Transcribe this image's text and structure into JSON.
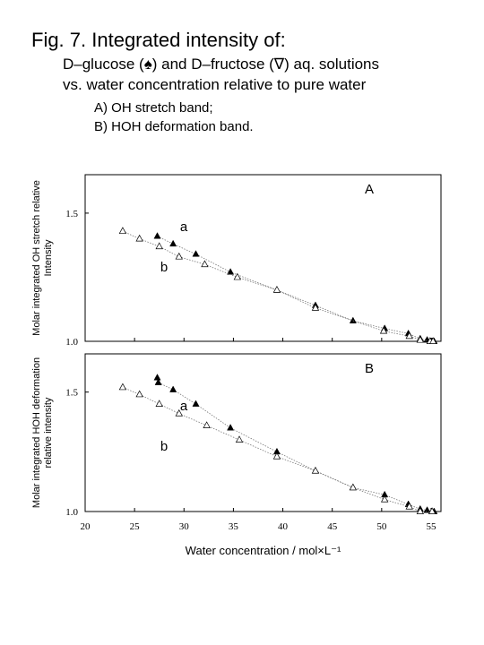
{
  "header": {
    "title": "Fig. 7. Integrated intensity of:",
    "subtitle_lines": [
      "D–glucose (♠) and D–fructose (∇) aq. solutions",
      "vs. water concentration relative to pure water"
    ],
    "items": [
      "A) OH stretch band;",
      "B) HOH deformation band."
    ]
  },
  "chart_data": [
    {
      "type": "scatter",
      "panel_label": "A",
      "y_label_lines": [
        "Molar integrated OH stretch relative",
        "Intensity"
      ],
      "xlim": [
        20,
        56
      ],
      "ylim": [
        1.0,
        1.65
      ],
      "xticks": [
        20,
        25,
        30,
        35,
        40,
        45,
        50,
        55
      ],
      "show_xtick_labels": false,
      "yticks": [
        {
          "value": 1.0,
          "label": "1.0"
        },
        1.5
      ],
      "series": [
        {
          "name": "a",
          "color": "#000000",
          "marker": "filled-triangle",
          "x": [
            27.3,
            28.9,
            31.2,
            34.7,
            39.4,
            43.3,
            47.1,
            50.3,
            52.7,
            53.9,
            54.6,
            55.1,
            55.3
          ],
          "values": [
            1.41,
            1.38,
            1.34,
            1.27,
            1.2,
            1.14,
            1.08,
            1.05,
            1.03,
            1.01,
            1.005,
            1.0,
            1.0
          ]
        },
        {
          "name": "b",
          "color": "#000000",
          "marker": "open-triangle",
          "x": [
            23.8,
            25.5,
            27.5,
            29.5,
            32.1,
            35.4,
            39.4,
            43.3,
            50.2,
            52.8,
            53.9,
            54.9,
            55.2
          ],
          "values": [
            1.43,
            1.4,
            1.37,
            1.33,
            1.3,
            1.25,
            1.2,
            1.13,
            1.04,
            1.02,
            1.005,
            1.0,
            1.0
          ]
        }
      ]
    },
    {
      "type": "scatter",
      "panel_label": "B",
      "y_label_lines": [
        "Molar integrated HOH deformation",
        "relative intensity"
      ],
      "x_label": "Water concentration / mol×L⁻¹",
      "xlim": [
        20,
        56
      ],
      "ylim": [
        1.0,
        1.66
      ],
      "xticks": [
        20,
        25,
        30,
        35,
        40,
        45,
        50,
        55
      ],
      "show_xtick_labels": true,
      "yticks": [
        {
          "value": 1.0,
          "label": "1.0"
        },
        1.5
      ],
      "series": [
        {
          "name": "a",
          "color": "#000000",
          "marker": "filled-triangle",
          "x": [
            27.3,
            27.4,
            28.9,
            31.2,
            34.7,
            39.4,
            43.3,
            47.1,
            50.3,
            52.7,
            53.9,
            54.6,
            55.3
          ],
          "values": [
            1.56,
            1.54,
            1.51,
            1.45,
            1.35,
            1.25,
            1.17,
            1.1,
            1.07,
            1.03,
            1.01,
            1.005,
            1.0
          ]
        },
        {
          "name": "b",
          "color": "#000000",
          "marker": "open-triangle",
          "x": [
            23.8,
            25.5,
            27.5,
            29.5,
            32.3,
            35.6,
            39.4,
            43.3,
            47.1,
            50.3,
            52.8,
            53.9,
            55.1
          ],
          "values": [
            1.52,
            1.49,
            1.45,
            1.41,
            1.36,
            1.3,
            1.23,
            1.17,
            1.1,
            1.05,
            1.02,
            1.0,
            1.0
          ]
        }
      ]
    }
  ]
}
